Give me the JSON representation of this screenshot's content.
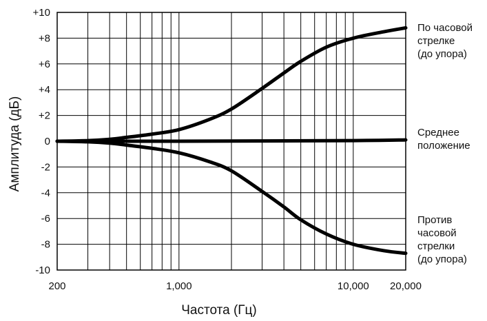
{
  "chart_data": {
    "type": "line",
    "title": "",
    "xlabel": "Частота (Гц)",
    "ylabel": "Амплитуда (дБ)",
    "x_scale": "log",
    "xlim": [
      200,
      20000
    ],
    "ylim": [
      -10,
      10
    ],
    "grid": true,
    "x_ticks": [
      {
        "value": 200,
        "label": "200"
      },
      {
        "value": 1000,
        "label": "1,000"
      },
      {
        "value": 10000,
        "label": "10,000"
      },
      {
        "value": 20000,
        "label": "20,000"
      }
    ],
    "x_gridlines": [
      200,
      300,
      400,
      500,
      600,
      700,
      800,
      900,
      1000,
      2000,
      3000,
      4000,
      5000,
      6000,
      7000,
      8000,
      9000,
      10000,
      20000
    ],
    "y_ticks": [
      {
        "value": 10,
        "label": "+10"
      },
      {
        "value": 8,
        "label": "+8"
      },
      {
        "value": 6,
        "label": "+6"
      },
      {
        "value": 4,
        "label": "+4"
      },
      {
        "value": 2,
        "label": "+2"
      },
      {
        "value": 0,
        "label": "0"
      },
      {
        "value": -2,
        "label": "-2"
      },
      {
        "value": -4,
        "label": "-4"
      },
      {
        "value": -6,
        "label": "-6"
      },
      {
        "value": -8,
        "label": "-8"
      },
      {
        "value": -10,
        "label": "-10"
      }
    ],
    "series": [
      {
        "name": "По часовой стрелке (до упора)",
        "label_lines": [
          "По часовой",
          "стрелке",
          "(до упора)"
        ],
        "color": "#000000",
        "x": [
          200,
          300,
          400,
          500,
          700,
          1000,
          1500,
          2000,
          3000,
          4000,
          5000,
          7000,
          10000,
          15000,
          20000
        ],
        "y": [
          0,
          0.05,
          0.15,
          0.3,
          0.55,
          0.9,
          1.7,
          2.5,
          4.1,
          5.3,
          6.2,
          7.3,
          8.0,
          8.5,
          8.8
        ]
      },
      {
        "name": "Среднее положение",
        "label_lines": [
          "Среднее",
          "положение"
        ],
        "color": "#000000",
        "x": [
          200,
          1000,
          10000,
          20000
        ],
        "y": [
          0,
          0,
          0.05,
          0.1
        ]
      },
      {
        "name": "Против часовой стрелки (до упора)",
        "label_lines": [
          "Против",
          "часовой",
          "стрелки",
          "(до упора)"
        ],
        "color": "#000000",
        "x": [
          200,
          300,
          400,
          500,
          700,
          1000,
          1500,
          2000,
          3000,
          4000,
          5000,
          7000,
          10000,
          15000,
          20000
        ],
        "y": [
          0,
          -0.05,
          -0.15,
          -0.3,
          -0.55,
          -0.9,
          -1.6,
          -2.3,
          -3.9,
          -5.1,
          -6.1,
          -7.2,
          -8.0,
          -8.5,
          -8.7
        ]
      }
    ]
  }
}
